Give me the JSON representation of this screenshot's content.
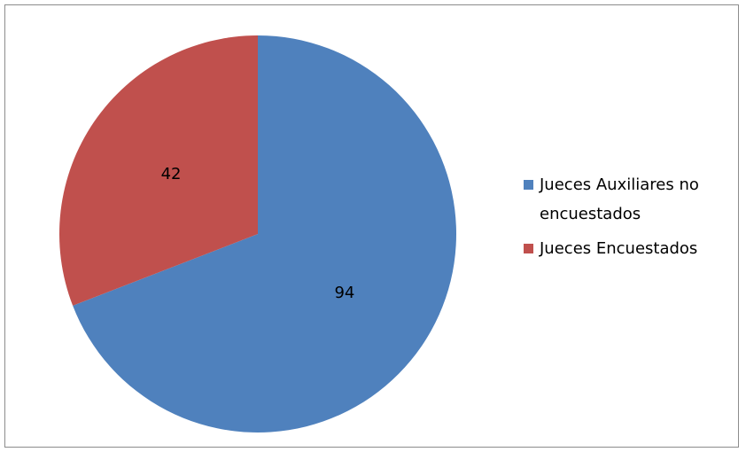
{
  "chart_data": {
    "type": "pie",
    "title": "",
    "categories": [
      "Jueces Auxiliares no encuestados",
      "Jueces Encuestados"
    ],
    "values": [
      94,
      42
    ],
    "colors": [
      "#4f81bd",
      "#c0504d"
    ],
    "data_labels": [
      "94",
      "42"
    ],
    "legend_placement": "right",
    "start_angle_degrees": 0,
    "direction": "clockwise"
  }
}
